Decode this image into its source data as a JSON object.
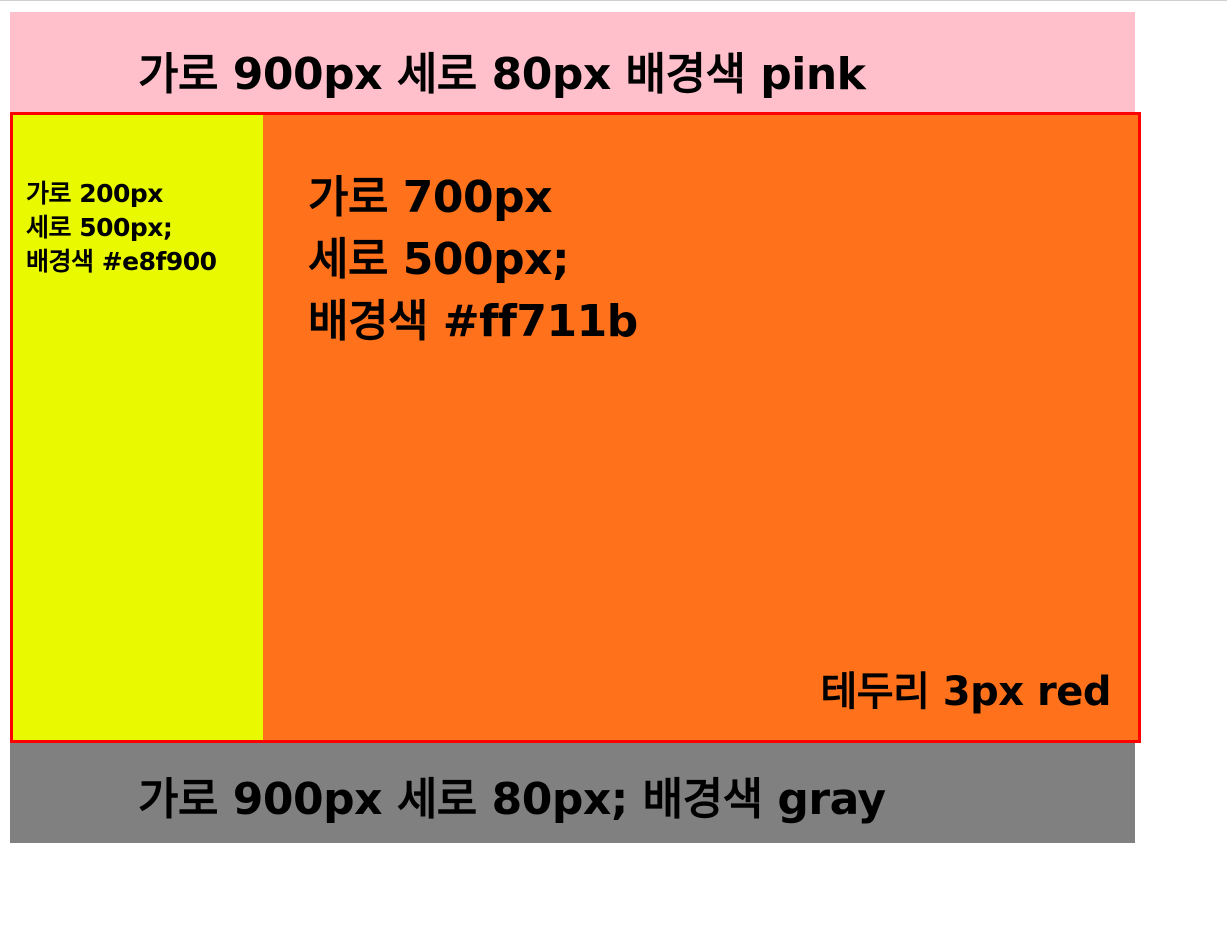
{
  "header": {
    "text": "가로 900px 세로 80px  배경색 pink",
    "color": "#ffc0cb"
  },
  "content": {
    "border_color": "#ff0000",
    "border_note": "테두리 3px red"
  },
  "sidebar": {
    "lines": [
      "가로 200px",
      "세로 500px;",
      "배경색 #e8f900"
    ],
    "color": "#e8f900"
  },
  "main": {
    "lines": [
      "가로 700px",
      "세로 500px;",
      "배경색 #ff711b"
    ],
    "color": "#ff711b"
  },
  "footer": {
    "text": "가로 900px 세로 80px;  배경색 gray",
    "color": "#808080"
  }
}
